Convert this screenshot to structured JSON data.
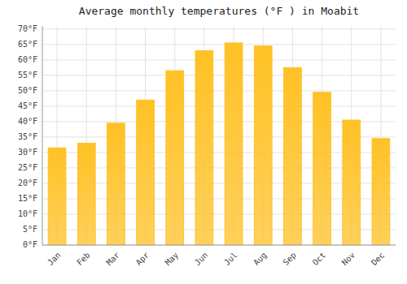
{
  "chart_data": {
    "type": "bar",
    "title": "Average monthly temperatures (°F ) in Moabit",
    "categories": [
      "Jan",
      "Feb",
      "Mar",
      "Apr",
      "May",
      "Jun",
      "Jul",
      "Aug",
      "Sep",
      "Oct",
      "Nov",
      "Dec"
    ],
    "values": [
      31.5,
      33.0,
      39.5,
      47.0,
      56.5,
      63.0,
      65.5,
      64.5,
      57.5,
      49.5,
      40.5,
      34.5
    ],
    "color": "#FFC125",
    "ylim": [
      0,
      71
    ],
    "yticks": [
      {
        "value": 0,
        "label": "0°F"
      },
      {
        "value": 5,
        "label": "5°F"
      },
      {
        "value": 10,
        "label": "10°F"
      },
      {
        "value": 15,
        "label": "15°F"
      },
      {
        "value": 20,
        "label": "20°F"
      },
      {
        "value": 25,
        "label": "25°F"
      },
      {
        "value": 30,
        "label": "30°F"
      },
      {
        "value": 35,
        "label": "35°F"
      },
      {
        "value": 40,
        "label": "40°F"
      },
      {
        "value": 45,
        "label": "45°F"
      },
      {
        "value": 50,
        "label": "50°F"
      },
      {
        "value": 55,
        "label": "55°F"
      },
      {
        "value": 60,
        "label": "60°F"
      },
      {
        "value": 65,
        "label": "65°F"
      },
      {
        "value": 70,
        "label": "70°F"
      }
    ],
    "grid": true
  }
}
